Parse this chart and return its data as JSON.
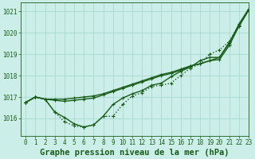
{
  "bg_color": "#cceee8",
  "grid_color": "#aad8d2",
  "line_color": "#1a5c1a",
  "title": "Graphe pression niveau de la mer (hPa)",
  "xlim": [
    -0.5,
    23
  ],
  "ylim": [
    1015.2,
    1021.4
  ],
  "yticks": [
    1016,
    1017,
    1018,
    1019,
    1020,
    1021
  ],
  "xticks": [
    0,
    1,
    2,
    3,
    4,
    5,
    6,
    7,
    8,
    9,
    10,
    11,
    12,
    13,
    14,
    15,
    16,
    17,
    18,
    19,
    20,
    21,
    22,
    23
  ],
  "series": [
    {
      "x": [
        0,
        1,
        2,
        3,
        4,
        5,
        6,
        7,
        8,
        9,
        10,
        11,
        12,
        13,
        14,
        15,
        16,
        17,
        18,
        19,
        20,
        21,
        22,
        23
      ],
      "y": [
        1016.75,
        1017.0,
        1016.9,
        1016.3,
        1015.85,
        1015.65,
        1015.6,
        1015.7,
        1016.1,
        1016.1,
        1016.65,
        1017.05,
        1017.2,
        1017.5,
        1017.55,
        1017.65,
        1018.0,
        1018.35,
        1018.55,
        1019.0,
        1019.2,
        1019.6,
        1020.35,
        1021.1
      ],
      "style": "dotted",
      "lw": 1.0,
      "marker": "+"
    },
    {
      "x": [
        0,
        1,
        2,
        3,
        4,
        5,
        6,
        7,
        8,
        9,
        10,
        11,
        12,
        13,
        14,
        15,
        16,
        17,
        18,
        19,
        20,
        21,
        22,
        23
      ],
      "y": [
        1016.75,
        1017.0,
        1016.9,
        1016.9,
        1016.9,
        1016.95,
        1017.0,
        1017.05,
        1017.15,
        1017.3,
        1017.45,
        1017.6,
        1017.75,
        1017.9,
        1018.05,
        1018.15,
        1018.3,
        1018.45,
        1018.55,
        1018.7,
        1018.85,
        1019.5,
        1020.4,
        1021.1
      ],
      "style": "solid",
      "lw": 1.0,
      "marker": "+"
    },
    {
      "x": [
        0,
        1,
        2,
        3,
        4,
        5,
        6,
        7,
        8,
        9,
        10,
        11,
        12,
        13,
        14,
        15,
        16,
        17,
        18,
        19,
        20,
        21,
        22,
        23
      ],
      "y": [
        1016.75,
        1017.0,
        1016.9,
        1016.85,
        1016.8,
        1016.85,
        1016.9,
        1016.95,
        1017.1,
        1017.25,
        1017.4,
        1017.55,
        1017.7,
        1017.85,
        1018.0,
        1018.1,
        1018.25,
        1018.45,
        1018.55,
        1018.7,
        1018.75,
        1019.4,
        1020.3,
        1021.05
      ],
      "style": "solid",
      "lw": 1.0,
      "marker": "+"
    },
    {
      "x": [
        0,
        1,
        2,
        3,
        4,
        5,
        6,
        7,
        8,
        9,
        10,
        11,
        12,
        13,
        14,
        15,
        16,
        17,
        18,
        19,
        20,
        21,
        22,
        23
      ],
      "y": [
        1016.75,
        1017.0,
        1016.9,
        1016.3,
        1016.05,
        1015.75,
        1015.6,
        1015.7,
        1016.1,
        1016.65,
        1016.95,
        1017.15,
        1017.3,
        1017.55,
        1017.65,
        1017.95,
        1018.2,
        1018.4,
        1018.7,
        1018.85,
        1018.85,
        1019.55,
        1020.3,
        1021.05
      ],
      "style": "solid",
      "lw": 1.0,
      "marker": "+"
    }
  ],
  "markersize": 2.5,
  "title_fontsize": 7.5,
  "tick_fontsize": 5.5
}
